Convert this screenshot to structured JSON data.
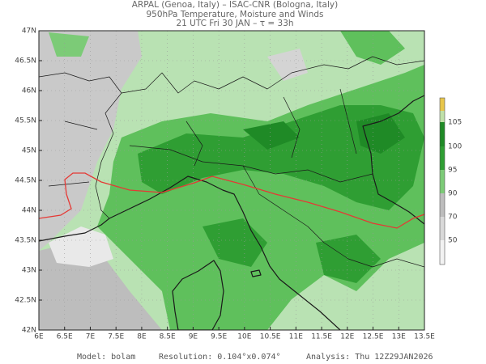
{
  "header": {
    "lines": [
      "ARPAL (Genoa, Italy)  –  ISAC-CNR (Bologna, Italy)",
      "950hPa Temperature, Moisture and Winds",
      "21 UTC Fri 30 JAN  –  τ = 33h"
    ]
  },
  "axes": {
    "lat_labels": [
      "47N",
      "46.5N",
      "46N",
      "45.5N",
      "45N",
      "44.5N",
      "44N",
      "43.5N",
      "43N",
      "42.5N",
      "42N"
    ],
    "lon_labels": [
      "6E",
      "6.5E",
      "7E",
      "7.5E",
      "8E",
      "8.5E",
      "9E",
      "9.5E",
      "10E",
      "10.5E",
      "11E",
      "11.5E",
      "12E",
      "12.5E",
      "13E",
      "13.5E"
    ]
  },
  "colorbar": {
    "labels": [
      "105",
      "100",
      "95",
      "90",
      "70",
      "50"
    ]
  },
  "footer": {
    "model": "Model: bolam",
    "resolution": "Resolution: 0.104°x0.074°",
    "analysis": "Analysis: Thu 12Z29JAN2026"
  }
}
